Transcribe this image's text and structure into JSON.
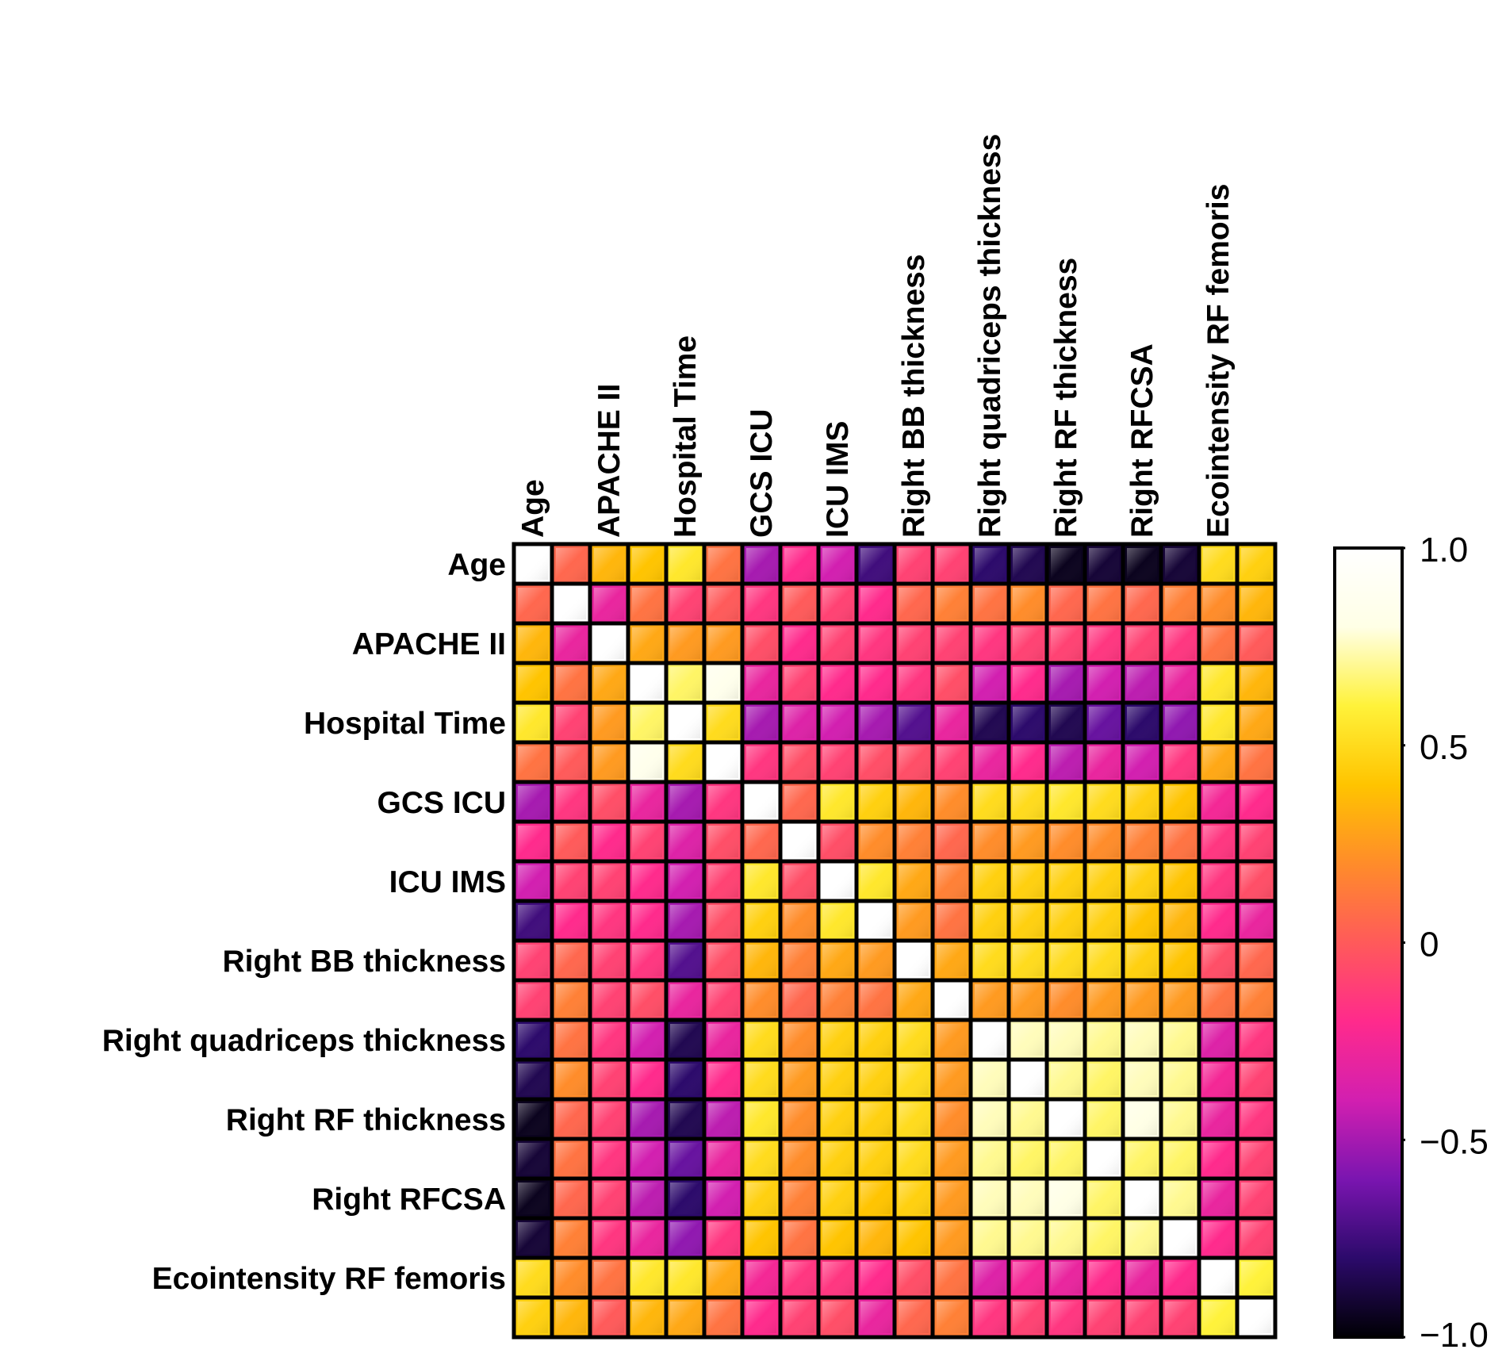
{
  "chart_data": {
    "type": "heatmap",
    "title": "",
    "xlabel": "",
    "ylabel": "",
    "col_labels": [
      "Age",
      "",
      "APACHE II",
      "",
      "Hospital Time",
      "",
      "GCS ICU",
      "",
      "ICU IMS",
      "",
      "Right BB thickness",
      "",
      "Right quadriceps thickness",
      "",
      "Right RF thickness",
      "",
      "Right RFCSA",
      "",
      "Ecointensity RF femoris",
      ""
    ],
    "row_labels": [
      "Age",
      "",
      "APACHE II",
      "",
      "Hospital Time",
      "",
      "GCS ICU",
      "",
      "ICU IMS",
      "",
      "Right BB thickness",
      "",
      "Right quadriceps thickness",
      "",
      "Right RF thickness",
      "",
      "Right RFCSA",
      "",
      "Ecointensity RF femoris",
      ""
    ],
    "values": [
      [
        1.0,
        0.05,
        0.35,
        0.4,
        0.55,
        0.1,
        -0.5,
        -0.2,
        -0.4,
        -0.75,
        -0.1,
        -0.1,
        -0.8,
        -0.85,
        -0.95,
        -0.9,
        -0.95,
        -0.9,
        0.5,
        0.45
      ],
      [
        0.05,
        1.0,
        -0.3,
        0.1,
        -0.1,
        0.0,
        -0.15,
        0.0,
        -0.1,
        -0.2,
        0.05,
        0.15,
        0.1,
        0.2,
        0.05,
        0.1,
        0.05,
        0.15,
        0.2,
        0.35
      ],
      [
        0.35,
        -0.3,
        1.0,
        0.3,
        0.25,
        0.25,
        -0.05,
        -0.2,
        -0.1,
        -0.15,
        -0.1,
        -0.1,
        -0.15,
        -0.1,
        -0.1,
        -0.15,
        -0.1,
        -0.15,
        0.1,
        0.0
      ],
      [
        0.4,
        0.1,
        0.3,
        1.0,
        0.65,
        0.85,
        -0.3,
        -0.1,
        -0.2,
        -0.2,
        -0.15,
        -0.05,
        -0.4,
        -0.2,
        -0.5,
        -0.4,
        -0.45,
        -0.3,
        0.55,
        0.35
      ],
      [
        0.55,
        -0.1,
        0.25,
        0.65,
        1.0,
        0.5,
        -0.5,
        -0.35,
        -0.4,
        -0.5,
        -0.7,
        -0.3,
        -0.85,
        -0.8,
        -0.85,
        -0.65,
        -0.8,
        -0.55,
        0.55,
        0.3
      ],
      [
        0.1,
        0.0,
        0.25,
        0.85,
        0.5,
        1.0,
        -0.15,
        -0.05,
        -0.1,
        -0.05,
        -0.05,
        -0.1,
        -0.3,
        -0.2,
        -0.45,
        -0.3,
        -0.4,
        -0.15,
        0.3,
        0.1
      ],
      [
        -0.5,
        -0.15,
        -0.05,
        -0.3,
        -0.5,
        -0.15,
        1.0,
        0.05,
        0.55,
        0.45,
        0.35,
        0.2,
        0.5,
        0.5,
        0.55,
        0.5,
        0.45,
        0.4,
        -0.25,
        -0.2
      ],
      [
        -0.2,
        0.0,
        -0.2,
        -0.1,
        -0.35,
        -0.05,
        0.05,
        1.0,
        -0.05,
        0.2,
        0.15,
        0.05,
        0.2,
        0.25,
        0.2,
        0.2,
        0.15,
        0.1,
        -0.15,
        -0.1
      ],
      [
        -0.4,
        -0.1,
        -0.1,
        -0.2,
        -0.4,
        -0.1,
        0.55,
        -0.05,
        1.0,
        0.55,
        0.3,
        0.15,
        0.45,
        0.45,
        0.45,
        0.45,
        0.45,
        0.4,
        -0.15,
        -0.05
      ],
      [
        -0.75,
        -0.2,
        -0.15,
        -0.2,
        -0.5,
        -0.05,
        0.45,
        0.2,
        0.55,
        1.0,
        0.25,
        0.1,
        0.45,
        0.45,
        0.45,
        0.45,
        0.4,
        0.35,
        -0.2,
        -0.3
      ],
      [
        -0.1,
        0.05,
        -0.1,
        -0.15,
        -0.7,
        -0.05,
        0.35,
        0.15,
        0.3,
        0.25,
        1.0,
        0.3,
        0.5,
        0.5,
        0.5,
        0.5,
        0.45,
        0.4,
        -0.05,
        0.05
      ],
      [
        -0.1,
        0.15,
        -0.1,
        -0.05,
        -0.3,
        -0.1,
        0.2,
        0.05,
        0.15,
        0.1,
        0.3,
        1.0,
        0.25,
        0.25,
        0.2,
        0.25,
        0.25,
        0.25,
        0.1,
        0.15
      ],
      [
        -0.8,
        0.1,
        -0.15,
        -0.4,
        -0.85,
        -0.3,
        0.5,
        0.2,
        0.45,
        0.45,
        0.5,
        0.25,
        1.0,
        0.75,
        0.75,
        0.7,
        0.75,
        0.7,
        -0.35,
        -0.15
      ],
      [
        -0.85,
        0.2,
        -0.1,
        -0.2,
        -0.8,
        -0.2,
        0.5,
        0.25,
        0.45,
        0.45,
        0.5,
        0.25,
        0.75,
        1.0,
        0.7,
        0.65,
        0.75,
        0.7,
        -0.25,
        -0.1
      ],
      [
        -0.95,
        0.05,
        -0.1,
        -0.5,
        -0.85,
        -0.45,
        0.55,
        0.2,
        0.45,
        0.45,
        0.5,
        0.2,
        0.75,
        0.7,
        1.0,
        0.65,
        0.8,
        0.7,
        -0.3,
        -0.15
      ],
      [
        -0.9,
        0.1,
        -0.15,
        -0.4,
        -0.65,
        -0.3,
        0.5,
        0.2,
        0.45,
        0.45,
        0.5,
        0.25,
        0.7,
        0.65,
        0.65,
        1.0,
        0.65,
        0.65,
        -0.2,
        -0.1
      ],
      [
        -0.95,
        0.05,
        -0.1,
        -0.45,
        -0.8,
        -0.4,
        0.45,
        0.15,
        0.45,
        0.4,
        0.45,
        0.25,
        0.75,
        0.75,
        0.8,
        0.65,
        1.0,
        0.7,
        -0.3,
        -0.1
      ],
      [
        -0.9,
        0.15,
        -0.15,
        -0.3,
        -0.55,
        -0.15,
        0.4,
        0.1,
        0.4,
        0.35,
        0.4,
        0.25,
        0.7,
        0.7,
        0.7,
        0.65,
        0.7,
        1.0,
        -0.2,
        -0.1
      ],
      [
        0.5,
        0.2,
        0.1,
        0.55,
        0.55,
        0.3,
        -0.25,
        -0.15,
        -0.15,
        -0.2,
        -0.05,
        0.1,
        -0.35,
        -0.25,
        -0.3,
        -0.2,
        -0.3,
        -0.2,
        1.0,
        0.6
      ],
      [
        0.45,
        0.35,
        0.0,
        0.35,
        0.3,
        0.1,
        -0.2,
        -0.1,
        -0.05,
        -0.3,
        0.05,
        0.15,
        -0.15,
        -0.1,
        -0.15,
        -0.1,
        -0.1,
        -0.1,
        0.6,
        1.0
      ]
    ],
    "colorbar": {
      "range": [
        -1.0,
        1.0
      ],
      "ticks": [
        1.0,
        0.5,
        0,
        -0.5,
        -1.0
      ],
      "tick_labels": [
        "1.0",
        "0.5",
        "0",
        "−0.5",
        "−1.0"
      ],
      "colormap": [
        "#000004",
        "#2c0a6b",
        "#7a15b0",
        "#d21fb0",
        "#ff2a8c",
        "#ff5a5a",
        "#ff8c2a",
        "#ffc400",
        "#fff23a",
        "#ffffe6",
        "#ffffff"
      ]
    },
    "legend_position": "right",
    "grid": true
  }
}
